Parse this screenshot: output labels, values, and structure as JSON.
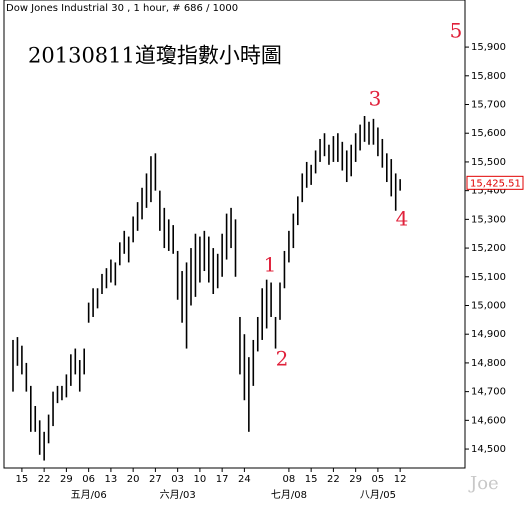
{
  "chart_data": {
    "type": "range_bar",
    "header": "Dow Jones Industrial 30 , 1 hour, # 686 / 1000",
    "title": "20130811道瓊指數小時圖",
    "watermark": "Joe",
    "color": "#000000",
    "categories": [
      null,
      null,
      "15",
      null,
      null,
      null,
      null,
      "22",
      null,
      null,
      null,
      null,
      "29",
      null,
      null,
      null,
      null,
      "06",
      null,
      null,
      null,
      null,
      "13",
      null,
      null,
      null,
      null,
      "20",
      null,
      null,
      null,
      null,
      "27",
      null,
      null,
      null,
      null,
      "03",
      null,
      null,
      null,
      null,
      "10",
      null,
      null,
      null,
      null,
      "17",
      null,
      null,
      null,
      null,
      "24",
      null,
      null,
      null,
      null,
      null,
      null,
      null,
      null,
      null,
      "08",
      null,
      null,
      null,
      null,
      "15",
      null,
      null,
      null,
      null,
      "22",
      null,
      null,
      null,
      null,
      "29",
      null,
      null,
      null,
      null,
      "05",
      null,
      null,
      null,
      null,
      "12"
    ],
    "months": [
      null,
      null,
      null,
      null,
      null,
      null,
      null,
      null,
      null,
      null,
      null,
      null,
      null,
      null,
      null,
      null,
      null,
      "五月/06",
      null,
      null,
      null,
      null,
      null,
      null,
      null,
      null,
      null,
      null,
      null,
      null,
      null,
      null,
      null,
      null,
      null,
      null,
      null,
      "六月/03",
      null,
      null,
      null,
      null,
      null,
      null,
      null,
      null,
      null,
      null,
      null,
      null,
      null,
      null,
      null,
      null,
      null,
      null,
      null,
      null,
      null,
      null,
      null,
      null,
      "七月/08",
      null,
      null,
      null,
      null,
      null,
      null,
      null,
      null,
      null,
      null,
      null,
      null,
      null,
      null,
      null,
      null,
      null,
      null,
      null,
      "八月/05",
      null,
      null,
      null,
      null,
      null
    ],
    "high": [
      14880,
      14890,
      14860,
      14800,
      14720,
      14650,
      14600,
      14560,
      14620,
      14700,
      14720,
      14720,
      14760,
      14830,
      14850,
      14810,
      14850,
      15010,
      15060,
      15060,
      15110,
      15130,
      15160,
      15150,
      15220,
      15260,
      15240,
      15310,
      15360,
      15410,
      15460,
      15520,
      15530,
      15400,
      15340,
      15300,
      15280,
      15190,
      15120,
      15150,
      15200,
      15250,
      15240,
      15260,
      15240,
      15200,
      15180,
      15250,
      15320,
      15340,
      15300,
      14960,
      14900,
      14820,
      14880,
      14960,
      15060,
      15090,
      15080,
      14960,
      15080,
      15190,
      15260,
      15320,
      15380,
      15460,
      15500,
      15490,
      15540,
      15580,
      15600,
      15560,
      15590,
      15600,
      15570,
      15540,
      15560,
      15600,
      15630,
      15660,
      15640,
      15650,
      15620,
      15580,
      15530,
      15510,
      15460,
      15440
    ],
    "low": [
      14700,
      14790,
      14760,
      14700,
      14560,
      14560,
      14480,
      14460,
      14520,
      14580,
      14660,
      14670,
      14680,
      14720,
      14760,
      14700,
      14760,
      14940,
      14960,
      14990,
      15040,
      15060,
      15080,
      15070,
      15140,
      15180,
      15150,
      15220,
      15260,
      15300,
      15340,
      15360,
      15400,
      15260,
      15200,
      15190,
      15180,
      15020,
      14940,
      14850,
      15000,
      15030,
      15080,
      15120,
      15080,
      15040,
      15060,
      15100,
      15160,
      15200,
      15100,
      14760,
      14670,
      14560,
      14720,
      14840,
      14880,
      14920,
      14960,
      14850,
      14950,
      15060,
      15150,
      15200,
      15280,
      15360,
      15410,
      15420,
      15460,
      15500,
      15520,
      15490,
      15500,
      15500,
      15470,
      15430,
      15450,
      15500,
      15540,
      15570,
      15560,
      15560,
      15520,
      15480,
      15430,
      15380,
      15330,
      15400
    ],
    "last_price": 15425.51,
    "last_price_label": "15,425.51",
    "last_price_color": "#e00000",
    "annotations": [
      "1",
      "2",
      "3",
      "4",
      "5"
    ],
    "annotation_color": "#e0203a",
    "ylim": [
      14434,
      16064
    ],
    "yticks": [
      {
        "value": 14500,
        "label": "14,500"
      },
      {
        "value": 14600,
        "label": "14,600"
      },
      {
        "value": 14700,
        "label": "14,700"
      },
      {
        "value": 14800,
        "label": "14,800"
      },
      {
        "value": 14900,
        "label": "14,900"
      },
      {
        "value": 15000,
        "label": "15,000"
      },
      {
        "value": 15100,
        "label": "15,100"
      },
      {
        "value": 15200,
        "label": "15,200"
      },
      {
        "value": 15300,
        "label": "15,300"
      },
      {
        "value": 15400,
        "label": "15,400"
      },
      {
        "value": 15500,
        "label": "15,500"
      },
      {
        "value": 15600,
        "label": "15,600"
      },
      {
        "value": 15700,
        "label": "15,700"
      },
      {
        "value": 15800,
        "label": "15,800"
      },
      {
        "value": 15900,
        "label": "15,900"
      }
    ]
  }
}
